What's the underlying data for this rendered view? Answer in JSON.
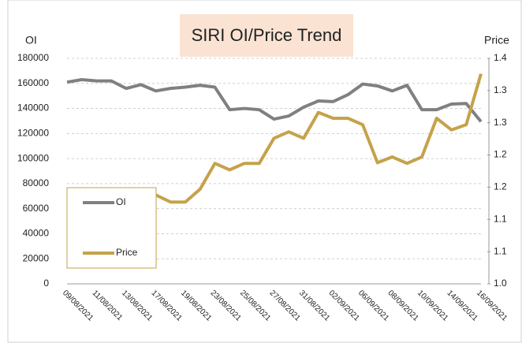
{
  "chart_data": {
    "type": "line",
    "title": "SIRI OI/Price Trend",
    "ylabel": "OI",
    "y2label": "Price",
    "categories": [
      "09/08/2021",
      null,
      "11/08/2021",
      null,
      "13/08/2021",
      null,
      "17/08/2021",
      null,
      "19/08/2021",
      null,
      "23/08/2021",
      null,
      "25/08/2021",
      null,
      "27/08/2021",
      null,
      "31/08/2021",
      null,
      "02/09/2021",
      null,
      "06/09/2021",
      null,
      "08/09/2021",
      null,
      "10/09/2021",
      null,
      "14/09/2021",
      null,
      "16/09/2021"
    ],
    "series": [
      {
        "name": "OI",
        "color": "#808080",
        "values": [
          161000,
          163000,
          162000,
          162000,
          156000,
          159000,
          154000,
          156000,
          157000,
          158500,
          157000,
          139000,
          140000,
          139000,
          131500,
          134000,
          141000,
          146000,
          145500,
          151000,
          159500,
          158000,
          154000,
          158500,
          139000,
          139000,
          143500,
          144000,
          129500
        ]
      },
      {
        "name": "Price",
        "color": "#c5a24a",
        "axis": "y2",
        "values": [
          1.116,
          1.126,
          1.117,
          1.116,
          1.108,
          1.108,
          1.138,
          1.127,
          1.127,
          1.147,
          1.187,
          1.177,
          1.187,
          1.187,
          1.226,
          1.236,
          1.226,
          1.266,
          1.257,
          1.257,
          1.247,
          1.188,
          1.197,
          1.187,
          1.197,
          1.257,
          1.239,
          1.247,
          1.326
        ]
      }
    ],
    "ylim": [
      0,
      180000
    ],
    "yticks": [
      0,
      20000,
      40000,
      60000,
      80000,
      100000,
      120000,
      140000,
      160000,
      180000
    ],
    "y2lim": [
      1.0,
      1.35
    ],
    "y2ticks": [
      {
        "value": 1.0,
        "label": "1.0"
      },
      {
        "value": 1.05,
        "label": "1.1"
      },
      1.1,
      {
        "value": 1.15,
        "label": "1.2"
      },
      1.2,
      {
        "value": 1.25,
        "label": "1.3"
      },
      1.3,
      {
        "value": 1.35,
        "label": "1.4"
      }
    ],
    "grid": true,
    "legend": "lower left"
  }
}
